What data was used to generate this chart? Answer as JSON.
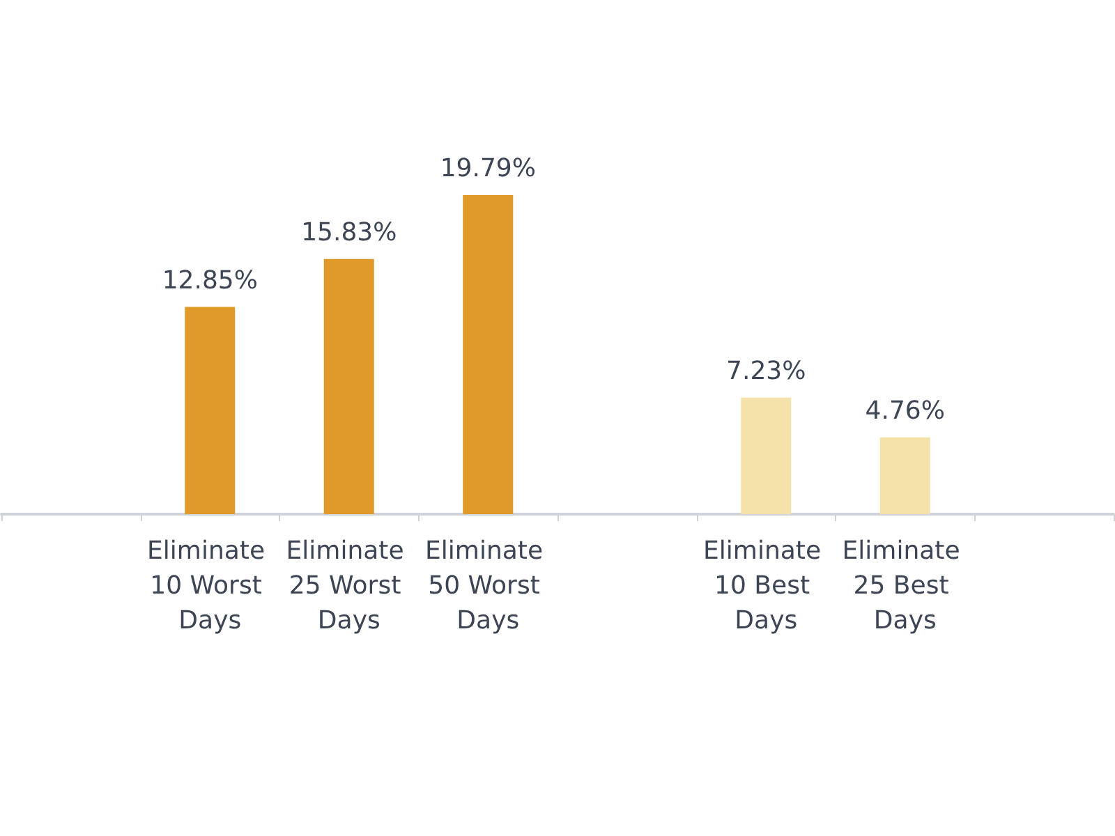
{
  "chart_data": {
    "type": "bar",
    "categories": [
      null,
      "Eliminate 10 Worst Days",
      "Eliminate 25 Worst Days",
      "Eliminate 50 Worst Days",
      null,
      "Eliminate 10 Best Days",
      "Eliminate 25 Best Days",
      null
    ],
    "values": [
      null,
      12.85,
      15.83,
      19.79,
      null,
      7.23,
      4.76,
      null
    ],
    "value_labels": [
      null,
      "12.85%",
      "15.83%",
      "19.79%",
      null,
      "7.23%",
      "4.76%",
      null
    ],
    "colors": [
      "#e09a2a",
      "#e09a2a",
      "#e09a2a",
      "#e09a2a",
      "#f5e2aa",
      "#f5e2aa",
      "#f5e2aa",
      "#f5e2aa"
    ],
    "tick_labels": "x"
  }
}
